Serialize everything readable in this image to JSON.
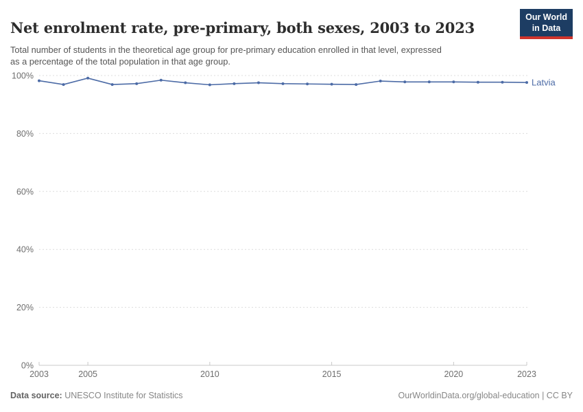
{
  "header": {
    "title": "Net enrolment rate, pre-primary, both sexes, 2003 to 2023",
    "subtitle": "Total number of students in the theoretical age group for pre-primary education enrolled in that level, expressed as a percentage of the total population in that age group.",
    "logo": {
      "line1": "Our World",
      "line2": "in Data",
      "bg_color": "#1d3d63",
      "accent_color": "#d0342c"
    }
  },
  "footer": {
    "datasource_label": "Data source:",
    "datasource_value": " UNESCO Institute for Statistics",
    "right_text": "OurWorldinData.org/global-education | CC BY"
  },
  "chart_data": {
    "type": "line",
    "title": "Net enrolment rate, pre-primary, both sexes, 2003 to 2023",
    "xlabel": "",
    "ylabel": "",
    "x": [
      2003,
      2004,
      2005,
      2006,
      2007,
      2008,
      2009,
      2010,
      2011,
      2012,
      2013,
      2014,
      2015,
      2016,
      2017,
      2018,
      2019,
      2020,
      2021,
      2022,
      2023
    ],
    "series": [
      {
        "name": "Latvia",
        "color": "#4c6ba6",
        "values": [
          98.2,
          96.9,
          99.1,
          96.9,
          97.2,
          98.4,
          97.5,
          96.8,
          97.2,
          97.5,
          97.2,
          97.1,
          97.0,
          96.9,
          98.1,
          97.8,
          97.8,
          97.8,
          97.7,
          97.7,
          97.6
        ]
      }
    ],
    "ylim": [
      0,
      100
    ],
    "yticks": [
      0,
      20,
      40,
      60,
      80,
      100
    ],
    "ytick_suffix": "%",
    "xticks": [
      2003,
      2005,
      2010,
      2015,
      2020,
      2023
    ],
    "grid": "horizontal-dashed",
    "legend_position": "end-of-line",
    "colors": {
      "grid": "#dcdcdc",
      "axis": "#c8c8c8",
      "tick_label": "#6e6e6e"
    }
  }
}
